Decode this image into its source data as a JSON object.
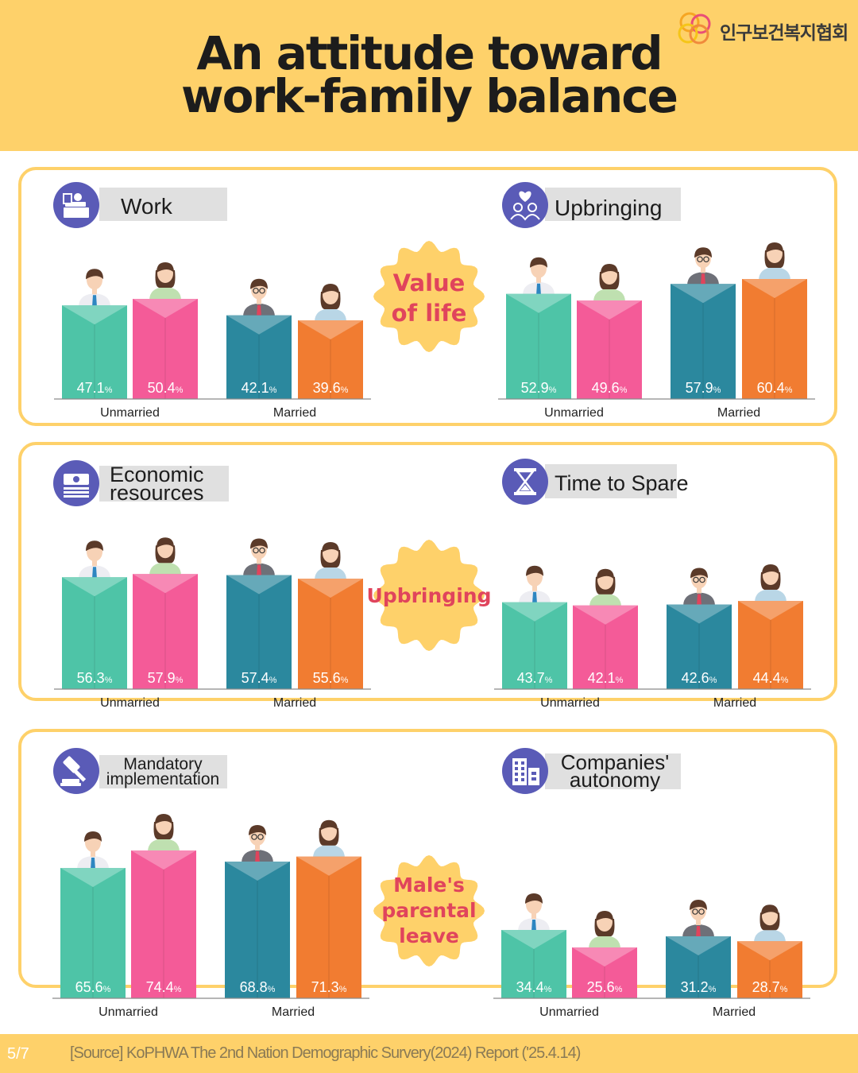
{
  "header": {
    "title_line1": "An attitude toward",
    "title_line2": "work-family balance",
    "logo_text": "인구보건복지협회"
  },
  "footer": {
    "page": "5/7",
    "source": "[Source] KoPHWA The 2nd Nation Demographic Survery(2024) Report  ('25.4.14)"
  },
  "panels": [
    {
      "center_label": [
        "Value",
        "of life"
      ],
      "charts": [
        {
          "title": [
            "Work"
          ],
          "icon": "work-desk-icon"
        },
        {
          "title": [
            "Upbringing"
          ],
          "icon": "family-heart-icon"
        }
      ]
    },
    {
      "center_label": [
        "Upbringing"
      ],
      "charts": [
        {
          "title": [
            "Economic",
            "resources"
          ],
          "icon": "money-icon"
        },
        {
          "title": [
            "Time to Spare"
          ],
          "icon": "hourglass-icon"
        }
      ]
    },
    {
      "center_label": [
        "Male's",
        "parental",
        "leave"
      ],
      "charts": [
        {
          "title": [
            "Mandatory",
            "implementation"
          ],
          "icon": "gavel-icon"
        },
        {
          "title": [
            "Companies'",
            "autonomy"
          ],
          "icon": "office-building-icon"
        }
      ]
    }
  ],
  "colors": {
    "unmarried_man": "#4EC4A7",
    "unmarried_woman": "#F45B98",
    "married_man": "#2B889E",
    "married_woman": "#F17C31",
    "panel_border": "#FED16A",
    "icon_circle": "#5A5BB7",
    "center_text": "#E0445C"
  },
  "chart_data": [
    {
      "type": "bar",
      "title": "Work",
      "categories": [
        "Unmarried",
        "Married"
      ],
      "values": [
        47.1,
        50.4,
        42.1,
        39.6
      ],
      "labels": [
        "47.1%",
        "50.4%",
        "42.1%",
        "39.6%"
      ]
    },
    {
      "type": "bar",
      "title": "Upbringing",
      "categories": [
        "Unmarried",
        "Married"
      ],
      "values": [
        52.9,
        49.6,
        57.9,
        60.4
      ],
      "labels": [
        "52.9%",
        "49.6%",
        "57.9%",
        "60.4%"
      ]
    },
    {
      "type": "bar",
      "title": "Economic resources",
      "categories": [
        "Unmarried",
        "Married"
      ],
      "values": [
        56.3,
        57.9,
        57.4,
        55.6
      ],
      "labels": [
        "56.3%",
        "57.9%",
        "57.4%",
        "55.6%"
      ]
    },
    {
      "type": "bar",
      "title": "Time to Spare",
      "categories": [
        "Unmarried",
        "Married"
      ],
      "values": [
        43.7,
        42.1,
        42.6,
        44.4
      ],
      "labels": [
        "43.7%",
        "42.1%",
        "42.6%",
        "44.4%"
      ]
    },
    {
      "type": "bar",
      "title": "Mandatory implementation",
      "categories": [
        "Unmarried",
        "Married"
      ],
      "values": [
        65.6,
        74.4,
        68.8,
        71.3
      ],
      "labels": [
        "65.6%",
        "74.4%",
        "68.8%",
        "71.3%"
      ]
    },
    {
      "type": "bar",
      "title": "Companies' autonomy",
      "categories": [
        "Unmarried",
        "Married"
      ],
      "values": [
        34.4,
        25.6,
        31.2,
        28.7
      ],
      "labels": [
        "34.4%",
        "25.6%",
        "31.2%",
        "28.7%"
      ]
    }
  ]
}
